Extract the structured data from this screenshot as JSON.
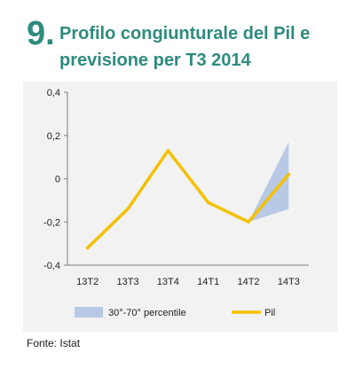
{
  "figure": {
    "number": "9.",
    "title": "Profilo congiunturale del Pil e previsione per T3 2014",
    "source": "Fonte: Istat"
  },
  "colors": {
    "title": "#2e8b7e",
    "line": "#f5c000",
    "band": "#b8c9e6",
    "axis": "#7f7f7f",
    "panel": "#f2f2f2"
  },
  "chart_data": {
    "type": "line",
    "categories": [
      "13T2",
      "13T3",
      "13T4",
      "14T1",
      "14T2",
      "14T3"
    ],
    "ylim": [
      -0.4,
      0.4
    ],
    "yticks": [
      {
        "value": -0.4,
        "label": "-0,4"
      },
      {
        "value": -0.2,
        "label": "-0,2"
      },
      {
        "value": 0,
        "label": "0"
      },
      {
        "value": 0.2,
        "label": "0,2"
      },
      {
        "value": 0.4,
        "label": "0,4"
      }
    ],
    "series": [
      {
        "name": "Pil",
        "type": "line",
        "values": [
          -0.32,
          -0.14,
          0.13,
          -0.11,
          -0.2,
          0.02
        ]
      }
    ],
    "band": {
      "name": "30°-70° percentile",
      "lower": [
        null,
        null,
        null,
        null,
        -0.2,
        -0.14
      ],
      "upper": [
        null,
        null,
        null,
        null,
        -0.2,
        0.17
      ]
    },
    "legend": {
      "position": "bottom",
      "items": [
        {
          "label": "30°-70° percentile",
          "kind": "band"
        },
        {
          "label": "Pil",
          "kind": "line"
        }
      ]
    },
    "grid": false
  }
}
